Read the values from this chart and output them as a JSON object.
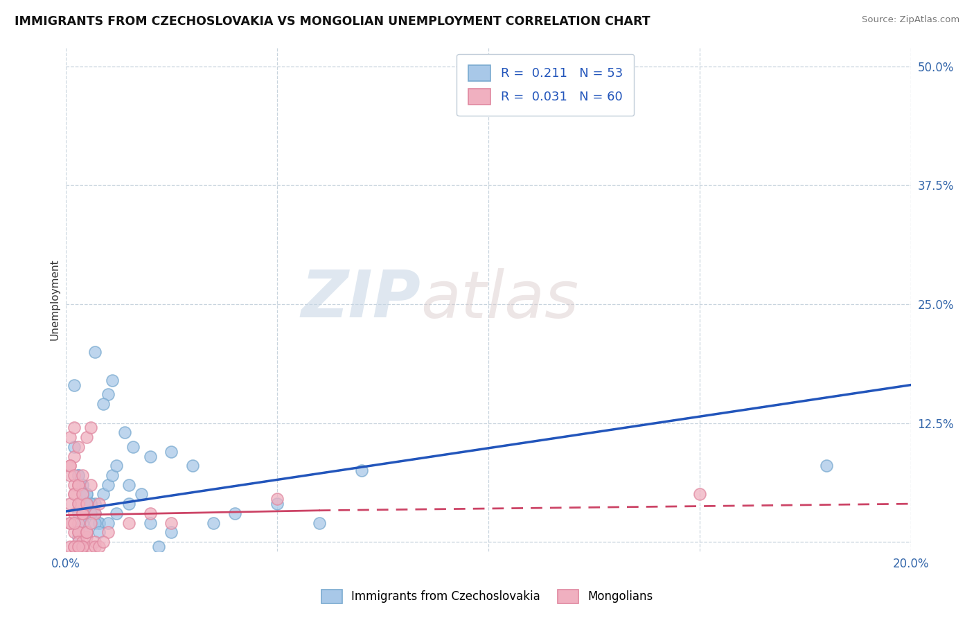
{
  "title": "IMMIGRANTS FROM CZECHOSLOVAKIA VS MONGOLIAN UNEMPLOYMENT CORRELATION CHART",
  "source": "Source: ZipAtlas.com",
  "ylabel": "Unemployment",
  "xlim": [
    0.0,
    0.2
  ],
  "ylim": [
    -0.01,
    0.52
  ],
  "x_ticks": [
    0.0,
    0.05,
    0.1,
    0.15,
    0.2
  ],
  "x_tick_labels": [
    "0.0%",
    "",
    "",
    "",
    "20.0%"
  ],
  "y_ticks": [
    0.0,
    0.125,
    0.25,
    0.375,
    0.5
  ],
  "y_tick_labels": [
    "",
    "12.5%",
    "25.0%",
    "37.5%",
    "50.0%"
  ],
  "blue_color": "#a8c8e8",
  "blue_edge_color": "#7aaad0",
  "pink_color": "#f0b0c0",
  "pink_edge_color": "#e088a0",
  "blue_line_color": "#2255bb",
  "pink_line_color": "#cc4466",
  "watermark_zip": "ZIP",
  "watermark_atlas": "atlas",
  "blue_scatter_x": [
    0.007,
    0.01,
    0.009,
    0.011,
    0.002,
    0.003,
    0.004,
    0.003,
    0.005,
    0.004,
    0.003,
    0.006,
    0.005,
    0.004,
    0.007,
    0.006,
    0.008,
    0.003,
    0.004,
    0.005,
    0.006,
    0.007,
    0.008,
    0.009,
    0.01,
    0.011,
    0.012,
    0.015,
    0.018,
    0.02,
    0.025,
    0.03,
    0.035,
    0.04,
    0.05,
    0.06,
    0.002,
    0.003,
    0.004,
    0.005,
    0.006,
    0.007,
    0.008,
    0.01,
    0.012,
    0.015,
    0.02,
    0.025,
    0.07,
    0.18,
    0.014,
    0.016,
    0.022
  ],
  "blue_scatter_y": [
    0.2,
    0.155,
    0.145,
    0.17,
    0.165,
    0.015,
    0.025,
    0.005,
    0.01,
    0.02,
    0.03,
    0.04,
    0.05,
    0.06,
    0.04,
    0.03,
    0.02,
    0.07,
    0.06,
    0.05,
    0.04,
    0.03,
    0.02,
    0.05,
    0.06,
    0.07,
    0.08,
    0.06,
    0.05,
    0.09,
    0.095,
    0.08,
    0.02,
    0.03,
    0.04,
    0.02,
    0.1,
    0.07,
    0.05,
    0.04,
    0.03,
    0.02,
    0.01,
    0.02,
    0.03,
    0.04,
    0.02,
    0.01,
    0.075,
    0.08,
    0.115,
    0.1,
    -0.005
  ],
  "pink_scatter_x": [
    0.001,
    0.002,
    0.001,
    0.002,
    0.003,
    0.001,
    0.002,
    0.003,
    0.001,
    0.002,
    0.003,
    0.004,
    0.002,
    0.003,
    0.001,
    0.002,
    0.003,
    0.001,
    0.002,
    0.003,
    0.001,
    0.002,
    0.003,
    0.004,
    0.003,
    0.002,
    0.004,
    0.003,
    0.004,
    0.005,
    0.006,
    0.004,
    0.005,
    0.006,
    0.007,
    0.008,
    0.001,
    0.002,
    0.003,
    0.004,
    0.005,
    0.003,
    0.004,
    0.002,
    0.006,
    0.007,
    0.05,
    0.025,
    0.02,
    0.015,
    0.01,
    0.005,
    0.004,
    0.003,
    0.007,
    0.008,
    0.009,
    0.15,
    0.005,
    0.006
  ],
  "pink_scatter_y": [
    0.07,
    0.09,
    0.11,
    0.12,
    0.1,
    0.08,
    0.06,
    0.04,
    0.02,
    0.01,
    0.02,
    0.03,
    0.05,
    0.06,
    0.08,
    0.07,
    0.01,
    0.02,
    0.03,
    0.04,
    0.04,
    0.05,
    0.06,
    0.07,
    0.01,
    0.02,
    0.03,
    0.04,
    0.05,
    0.11,
    0.12,
    0.03,
    0.04,
    0.06,
    0.03,
    0.04,
    -0.005,
    -0.005,
    0.0,
    0.0,
    0.005,
    -0.005,
    -0.005,
    -0.005,
    -0.005,
    0.0,
    0.045,
    0.02,
    0.03,
    0.02,
    0.01,
    0.01,
    -0.005,
    -0.005,
    -0.005,
    -0.005,
    0.0,
    0.05,
    0.01,
    0.02
  ],
  "blue_trend": {
    "x_start": 0.0,
    "y_start": 0.032,
    "x_end": 0.2,
    "y_end": 0.165
  },
  "pink_trend_solid": {
    "x_start": 0.0,
    "y_start": 0.028,
    "x_end": 0.06,
    "y_end": 0.033
  },
  "pink_trend_dashed": {
    "x_start": 0.06,
    "y_start": 0.033,
    "x_end": 0.2,
    "y_end": 0.04
  }
}
